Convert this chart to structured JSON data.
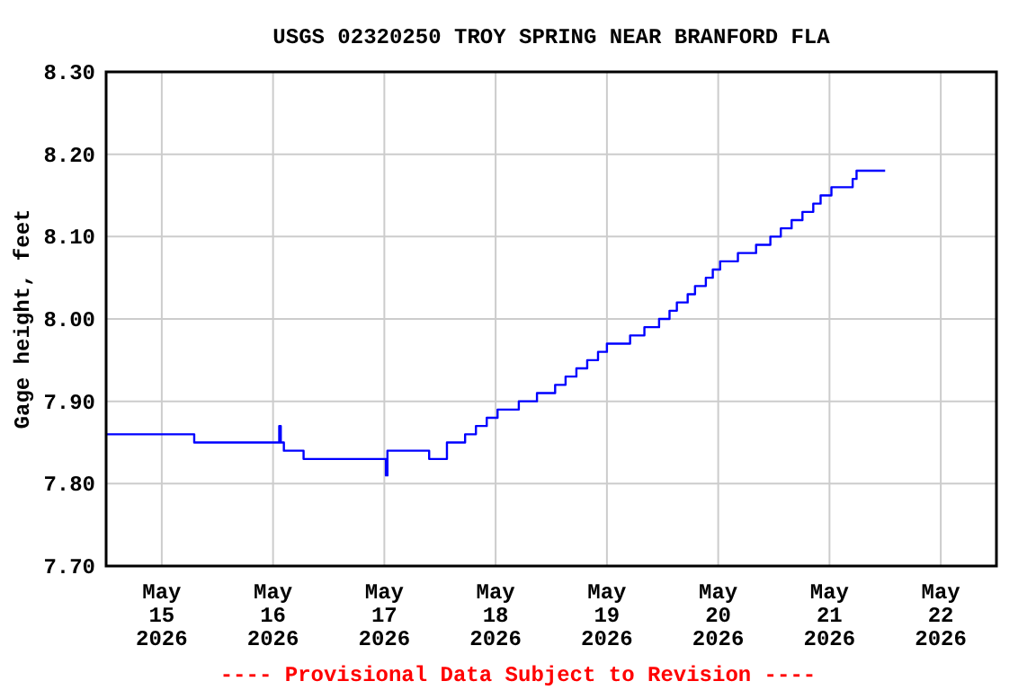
{
  "chart_data": {
    "type": "step",
    "title": "USGS 02320250 TROY SPRING NEAR BRANFORD FLA",
    "ylabel": "Gage height, feet",
    "annotations": [
      "---- Provisional Data Subject to Revision ----"
    ],
    "x": [
      "2026-05-14T12:00",
      "2026-05-15T07:00",
      "2026-05-16T01:20",
      "2026-05-16T01:40",
      "2026-05-16T02:20",
      "2026-05-16T06:35",
      "2026-05-17T00:20",
      "2026-05-17T00:40",
      "2026-05-17T09:40",
      "2026-05-17T13:30",
      "2026-05-17T17:25",
      "2026-05-17T19:45",
      "2026-05-17T22:05",
      "2026-05-18T00:25",
      "2026-05-18T05:00",
      "2026-05-18T08:55",
      "2026-05-18T12:50",
      "2026-05-18T15:05",
      "2026-05-18T17:25",
      "2026-05-18T19:45",
      "2026-05-18T22:05",
      "2026-05-19T00:00",
      "2026-05-19T05:00",
      "2026-05-19T08:05",
      "2026-05-19T11:15",
      "2026-05-19T13:30",
      "2026-05-19T15:05",
      "2026-05-19T17:25",
      "2026-05-19T19:00",
      "2026-05-19T21:20",
      "2026-05-19T22:50",
      "2026-05-20T00:25",
      "2026-05-20T04:15",
      "2026-05-20T08:10",
      "2026-05-20T11:15",
      "2026-05-20T13:30",
      "2026-05-20T15:50",
      "2026-05-20T18:10",
      "2026-05-20T20:30",
      "2026-05-20T22:05",
      "2026-05-21T00:25",
      "2026-05-21T05:00",
      "2026-05-21T05:50",
      "2026-05-21T12:00"
    ],
    "series": [
      {
        "color": "#0000ff",
        "values": [
          7.86,
          7.85,
          7.87,
          7.85,
          7.84,
          7.83,
          7.81,
          7.84,
          7.83,
          7.85,
          7.86,
          7.87,
          7.88,
          7.89,
          7.9,
          7.91,
          7.92,
          7.93,
          7.94,
          7.95,
          7.96,
          7.97,
          7.98,
          7.99,
          8.0,
          8.01,
          8.02,
          8.03,
          8.04,
          8.05,
          8.06,
          8.07,
          8.08,
          8.09,
          8.1,
          8.11,
          8.12,
          8.13,
          8.14,
          8.15,
          8.16,
          8.17,
          8.18,
          8.18
        ]
      }
    ],
    "xlim": [
      "2026-05-14T12:00",
      "2026-05-22T12:00"
    ],
    "xticks": [
      {
        "value": "2026-05-15",
        "label": "May\n15\n2026"
      },
      {
        "value": "2026-05-16",
        "label": "May\n16\n2026"
      },
      {
        "value": "2026-05-17",
        "label": "May\n17\n2026"
      },
      {
        "value": "2026-05-18",
        "label": "May\n18\n2026"
      },
      {
        "value": "2026-05-19",
        "label": "May\n19\n2026"
      },
      {
        "value": "2026-05-20",
        "label": "May\n20\n2026"
      },
      {
        "value": "2026-05-21",
        "label": "May\n21\n2026"
      },
      {
        "value": "2026-05-22",
        "label": "May\n22\n2026"
      }
    ],
    "ylim": [
      7.7,
      8.3
    ],
    "yticks": [
      {
        "value": 7.7,
        "label": "7.70"
      },
      {
        "value": 7.8,
        "label": "7.80"
      },
      {
        "value": 7.9,
        "label": "7.90"
      },
      {
        "value": 8.0,
        "label": "8.00"
      },
      {
        "value": 8.1,
        "label": "8.10"
      },
      {
        "value": 8.2,
        "label": "8.20"
      },
      {
        "value": 8.3,
        "label": "8.30"
      }
    ],
    "grid": true
  }
}
